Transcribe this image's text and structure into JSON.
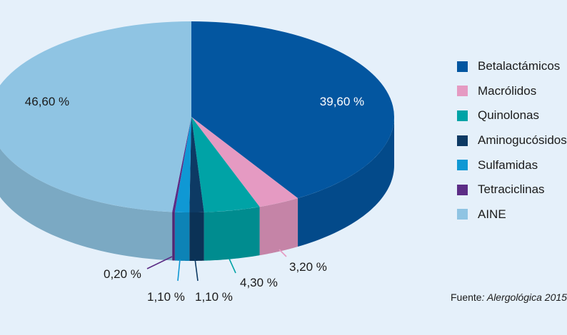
{
  "chart_data": {
    "type": "pie",
    "variant": "3d",
    "categories": [
      "Betalactámicos",
      "Macrólidos",
      "Quinolonas",
      "Aminogucósidos",
      "Sulfamidas",
      "Tetraciclinas",
      "AINE"
    ],
    "values": [
      39.6,
      3.2,
      4.3,
      1.1,
      1.1,
      0.2,
      46.6
    ],
    "value_labels": [
      "39,60 %",
      "3,20 %",
      "4,30 %",
      "1,10 %",
      "1,10 %",
      "0,20 %",
      "46,60 %"
    ],
    "colors": [
      "#0356a0",
      "#e59ac2",
      "#00a3a6",
      "#0d3a64",
      "#0f98d4",
      "#5c2d86",
      "#8fc4e3"
    ],
    "legend_position": "right"
  },
  "legend": {
    "items": [
      {
        "label": "Betalactámicos",
        "color": "#0356a0"
      },
      {
        "label": "Macrólidos",
        "color": "#e59ac2"
      },
      {
        "label": "Quinolonas",
        "color": "#00a3a6"
      },
      {
        "label": "Aminogucósidos",
        "color": "#0d3a64"
      },
      {
        "label": "Sulfamidas",
        "color": "#0f98d4"
      },
      {
        "label": "Tetraciclinas",
        "color": "#5c2d86"
      },
      {
        "label": "AINE",
        "color": "#8fc4e3"
      }
    ]
  },
  "source": {
    "prefix": "Fuente",
    "text": ": Alergológica 2015"
  }
}
